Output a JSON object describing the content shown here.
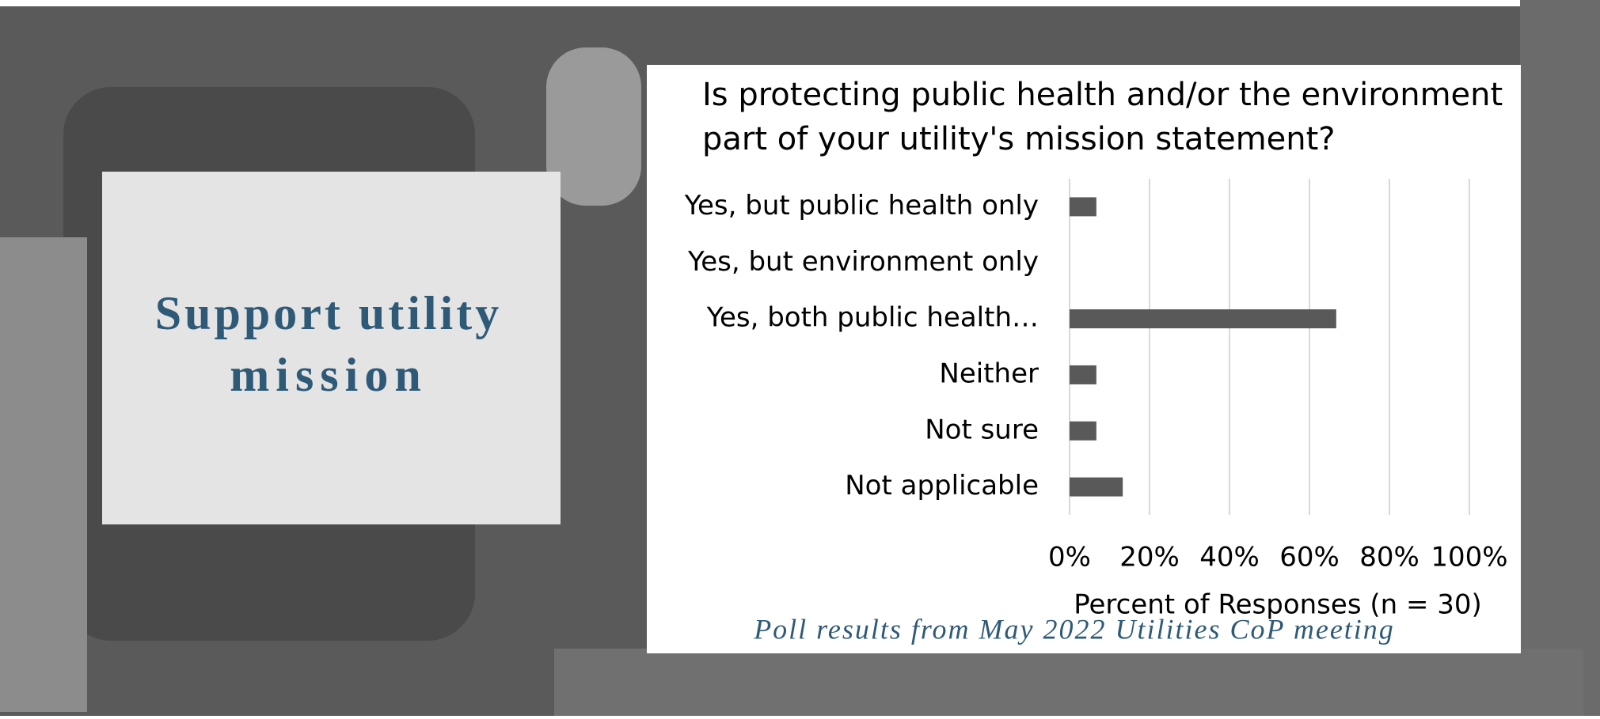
{
  "slide": {
    "heading_lines": [
      "Support utility",
      "mission"
    ],
    "footnote": "Poll results from May 2022 Utilities CoP meeting"
  },
  "chart_data": {
    "type": "bar",
    "orientation": "horizontal",
    "title_lines": [
      "Is protecting public health and/or the environment",
      "part of your utility's mission statement?"
    ],
    "categories": [
      "Yes, but public health only",
      "Yes, but environment only",
      "Yes, both public health…",
      "Neither",
      "Not sure",
      "Not applicable"
    ],
    "values": [
      6.7,
      0,
      66.7,
      6.7,
      6.7,
      13.3
    ],
    "color": "#595959",
    "xlabel": "Percent of Responses (n = 30)",
    "xlim": [
      0,
      100
    ],
    "xticks": [
      {
        "value": 0,
        "label": "0%"
      },
      {
        "value": 20,
        "label": "20%"
      },
      {
        "value": 40,
        "label": "40%"
      },
      {
        "value": 60,
        "label": "60%"
      },
      {
        "value": 80,
        "label": "80%"
      },
      {
        "value": 100,
        "label": "100%"
      }
    ],
    "grid": true
  }
}
